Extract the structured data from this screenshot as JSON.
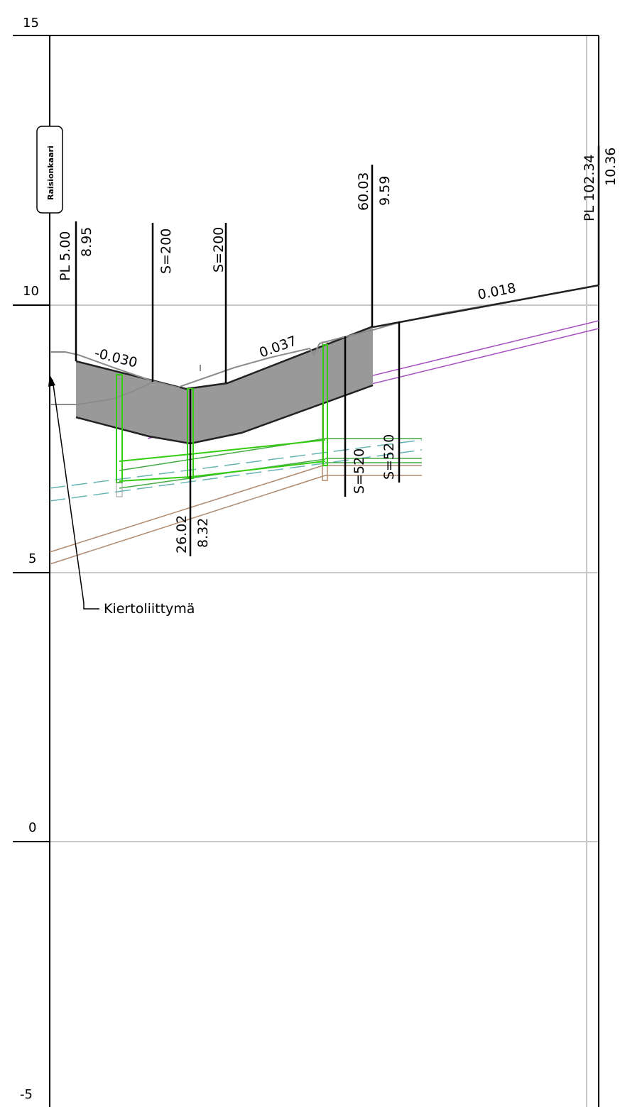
{
  "axis": {
    "labels": [
      "15",
      "10",
      "5",
      "0",
      "-5"
    ]
  },
  "road_name": "Raisionkaari",
  "start_station": "PL 5.00",
  "start_elevation": "8.95",
  "curve_labels": [
    "S=200",
    "S=200",
    "S=520",
    "S=520"
  ],
  "pvi_station": "60.03",
  "pvi_elevation": "9.59",
  "low_station": "26.02",
  "low_elevation": "8.32",
  "end_station": "PL 102.34",
  "end_elevation": "10.36",
  "grades": [
    "-0.030",
    "0.037",
    "0.018"
  ],
  "roundabout_label": "Kiertoliittymä",
  "colors": {
    "gridline": "#c8c8c8",
    "cross_section_fill": "#999999",
    "existing_ground": "#8c8c8c",
    "green_structure": "#33cc11",
    "pipe_green": "#44aa44",
    "teal_dashed": "#66b3b3",
    "purple": "#a64dbf",
    "brown": "#b08a6e"
  }
}
